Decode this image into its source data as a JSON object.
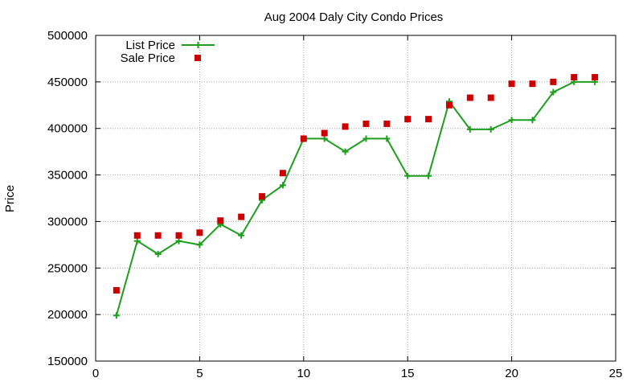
{
  "chart_data": {
    "type": "line",
    "title": "Aug 2004 Daly City Condo Prices",
    "xlabel": "",
    "ylabel": "Price",
    "xlim": [
      0,
      25
    ],
    "ylim": [
      150000,
      500000
    ],
    "x_ticks": [
      0,
      5,
      10,
      15,
      20,
      25
    ],
    "y_ticks": [
      150000,
      200000,
      250000,
      300000,
      350000,
      400000,
      450000,
      500000
    ],
    "grid": true,
    "legend_position": "top-left",
    "series": [
      {
        "name": "List Price",
        "style": "line+plus",
        "color": "#1f9e1f",
        "x": [
          1,
          2,
          3,
          4,
          5,
          6,
          7,
          8,
          9,
          10,
          11,
          12,
          13,
          14,
          15,
          16,
          17,
          18,
          19,
          20,
          21,
          22,
          23,
          24
        ],
        "values": [
          199000,
          279000,
          265000,
          279000,
          275000,
          297000,
          285000,
          323000,
          339000,
          389000,
          389000,
          375000,
          389000,
          389000,
          349000,
          349000,
          429000,
          399000,
          399000,
          409000,
          409000,
          439000,
          450000,
          450000
        ]
      },
      {
        "name": "Sale Price",
        "style": "square",
        "color": "#cc0000",
        "x": [
          1,
          2,
          3,
          4,
          5,
          6,
          7,
          8,
          9,
          10,
          11,
          12,
          13,
          14,
          15,
          16,
          17,
          18,
          19,
          20,
          21,
          22,
          23,
          24
        ],
        "values": [
          226000,
          285000,
          285000,
          285000,
          288000,
          301000,
          305000,
          327000,
          352000,
          389000,
          395000,
          402000,
          405000,
          405000,
          410000,
          410000,
          425000,
          433000,
          433000,
          448000,
          448000,
          450000,
          455000,
          455000
        ]
      }
    ]
  }
}
